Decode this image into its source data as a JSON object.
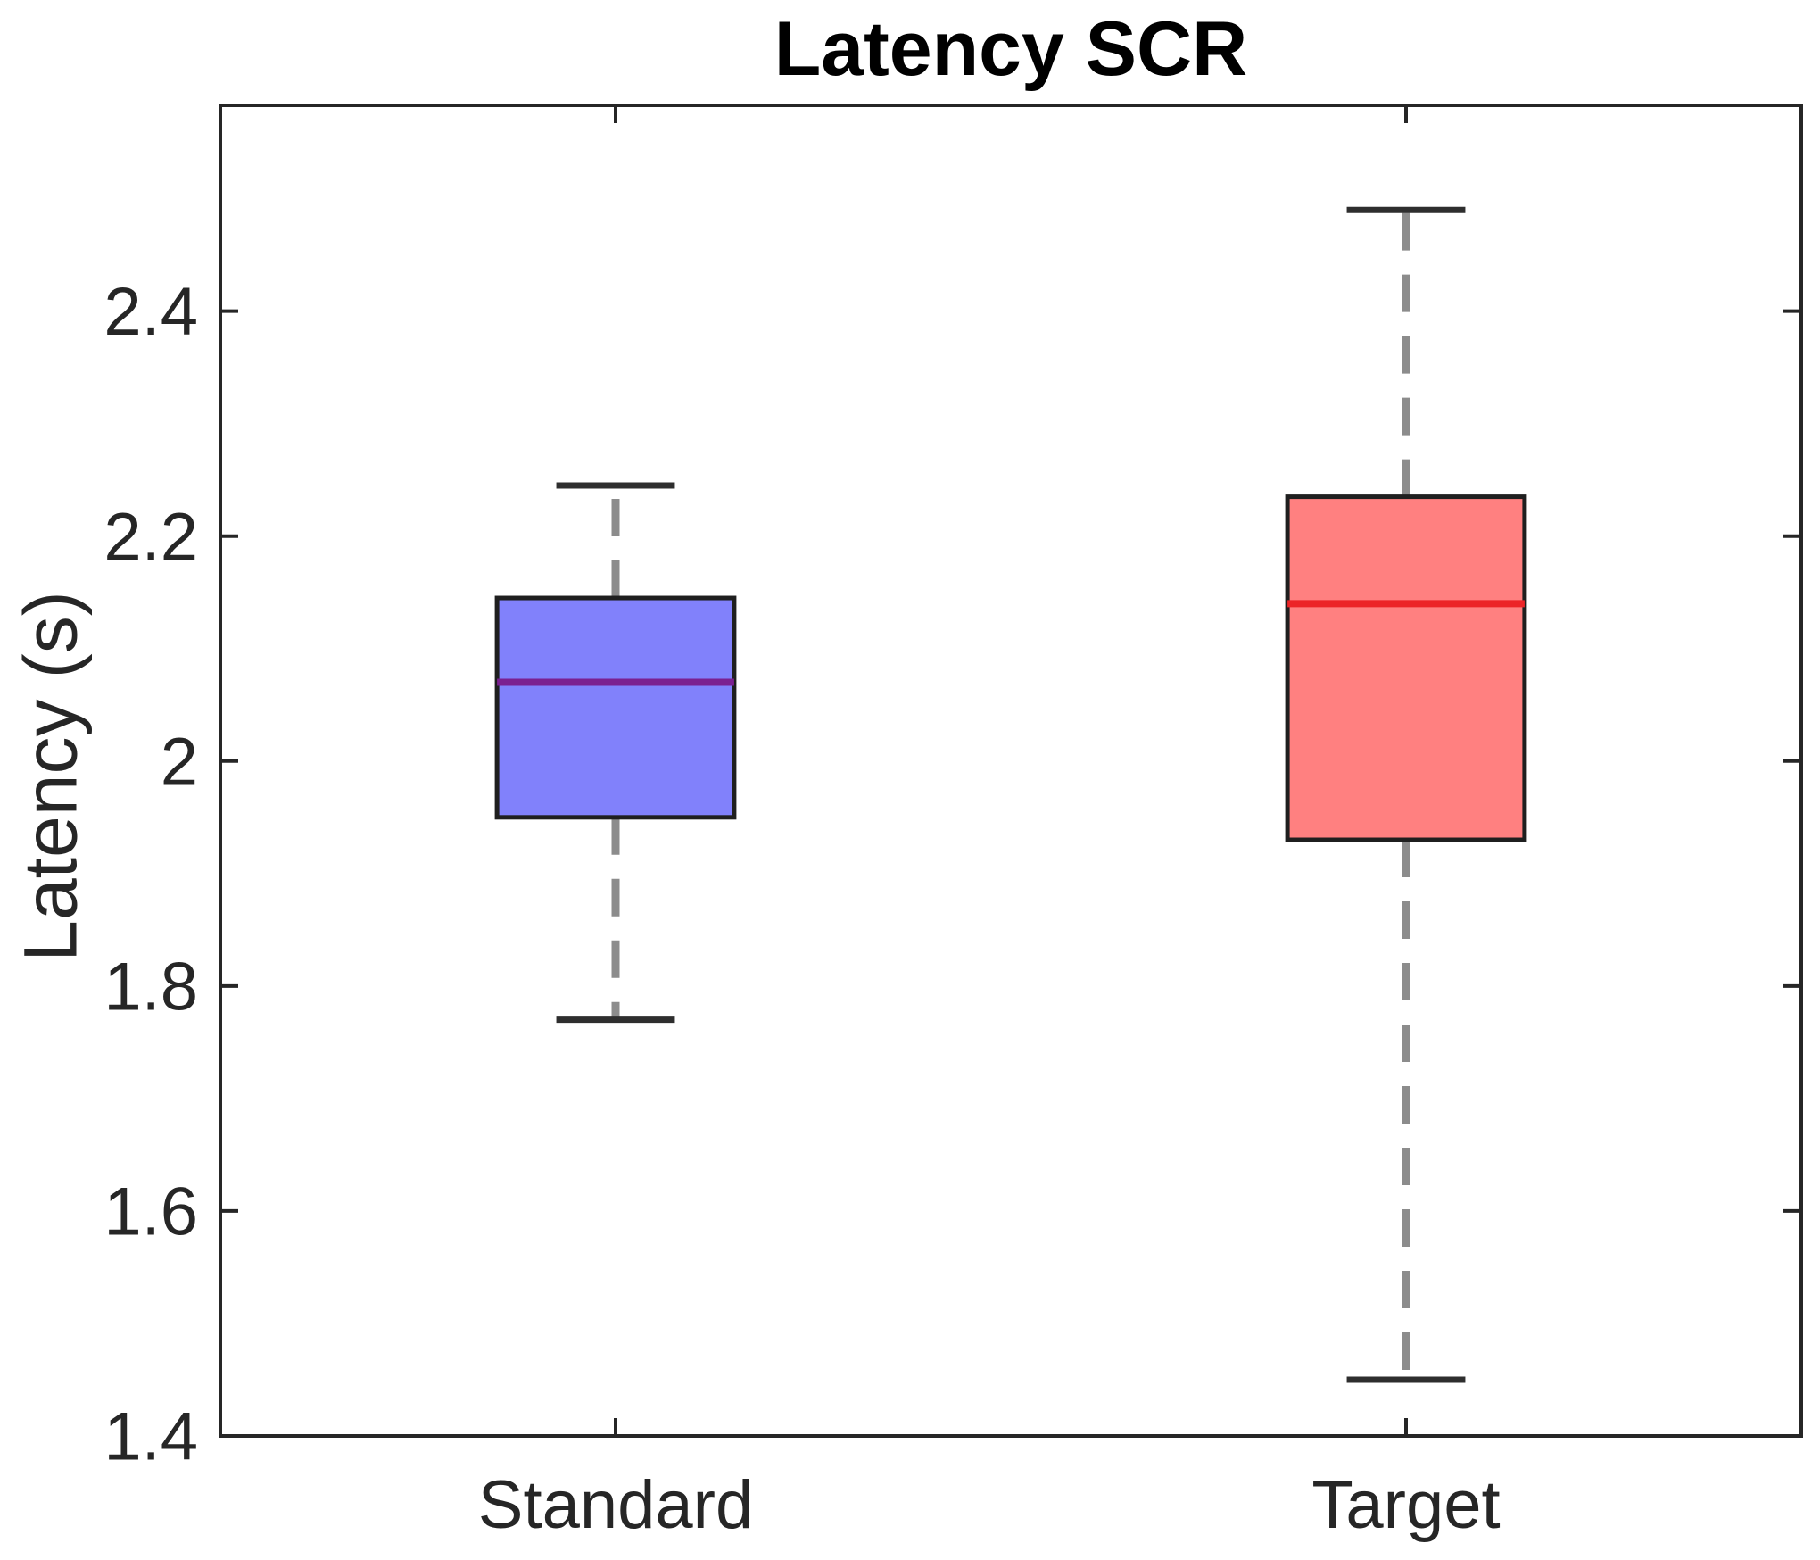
{
  "chart_data": {
    "type": "boxplot",
    "title": "Latency SCR",
    "ylabel": "Latency (s)",
    "xlabel": "",
    "categories": [
      "Standard",
      "Target"
    ],
    "x_positions": [
      1,
      2
    ],
    "xlim": [
      0.5,
      2.5
    ],
    "ylim": [
      1.4,
      2.583
    ],
    "ytick_values": [
      1.4,
      1.6,
      1.8,
      2.0,
      2.2,
      2.4
    ],
    "ytick_labels": [
      "1.4",
      "1.6",
      "1.8",
      "2",
      "2.2",
      "2.4"
    ],
    "grid": false,
    "legend": false,
    "box_width_units": 0.3,
    "cap_width_units": 0.15,
    "series": [
      {
        "name": "Standard",
        "whisker_low": 1.77,
        "q1": 1.95,
        "median": 2.07,
        "q3": 2.145,
        "whisker_high": 2.245,
        "fill_color": "#8181FB",
        "median_color": "#7B2090"
      },
      {
        "name": "Target",
        "whisker_low": 1.45,
        "q1": 1.93,
        "median": 2.14,
        "q3": 2.235,
        "whisker_high": 2.49,
        "fill_color": "#FF8080",
        "median_color": "#EC2427"
      }
    ],
    "styles": {
      "background": "#FFFFFF",
      "axis_color": "#262626",
      "tick_label_color": "#262626",
      "box_edge_color": "#1F1F1F",
      "whisker_color": "#8C8C8C",
      "cap_color": "#2E2E2E",
      "title_color": "#000000"
    }
  }
}
